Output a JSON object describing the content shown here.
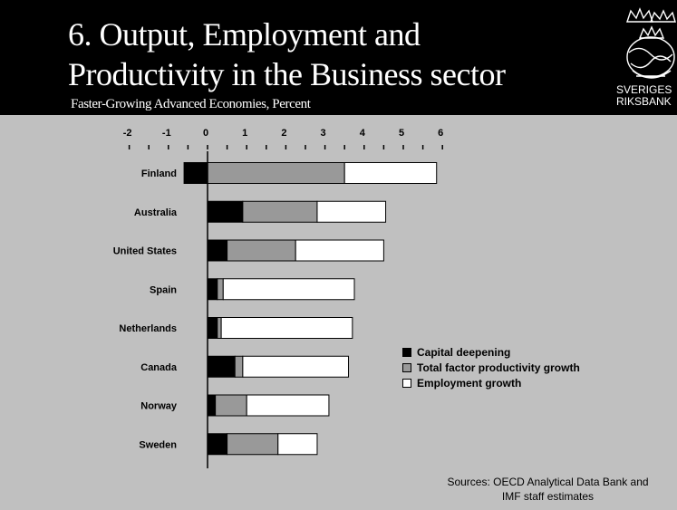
{
  "header": {
    "title_line1": "6. Output, Employment and",
    "title_line2": "Productivity in the Business sector",
    "subtitle": "Faster-Growing Advanced Economies, Percent",
    "logo_line1": "SVERIGES",
    "logo_line2": "RIKSBANK"
  },
  "sources": {
    "line1": "Sources: OECD Analytical Data Bank and",
    "line2": "IMF staff estimates"
  },
  "chart_data": {
    "type": "bar",
    "orientation": "horizontal",
    "stacked": true,
    "title": "6. Output, Employment and Productivity in the Business sector",
    "subtitle": "Faster-Growing Advanced Economies, Percent",
    "xlim": [
      -2,
      6
    ],
    "x_ticks": [
      "-2",
      "-1",
      "0",
      "1",
      "2",
      "3",
      "4",
      "5",
      "6"
    ],
    "x_axis_position": "top",
    "grid": false,
    "legend_position": "right",
    "categories": [
      "Finland",
      "Australia",
      "United States",
      "Spain",
      "Netherlands",
      "Canada",
      "Norway",
      "Sweden"
    ],
    "series": [
      {
        "name": "Capital deepening",
        "color": "#000000",
        "values": [
          -0.6,
          0.9,
          0.5,
          0.25,
          0.25,
          0.7,
          0.2,
          0.5
        ]
      },
      {
        "name": "Total factor productivity growth",
        "color": "#999999",
        "values": [
          3.5,
          1.9,
          1.75,
          0.15,
          0.1,
          0.2,
          0.8,
          1.3
        ]
      },
      {
        "name": "Employment growth",
        "color": "#ffffff",
        "values": [
          2.35,
          1.75,
          2.25,
          3.35,
          3.35,
          2.7,
          2.1,
          1.0
        ]
      }
    ]
  }
}
